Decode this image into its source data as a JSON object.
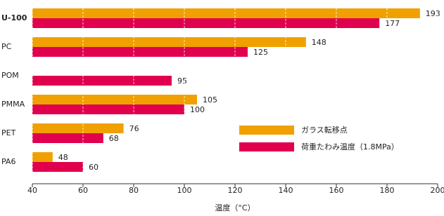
{
  "chart_data": {
    "type": "bar",
    "orientation": "horizontal",
    "x_label": "温度（°C）",
    "categories": [
      "U-100",
      "PC",
      "POM",
      "PMMA",
      "PET",
      "PA6"
    ],
    "series": [
      {
        "name": "ガラス転移点",
        "color": "#f0a000",
        "values": [
          193,
          148,
          null,
          105,
          76,
          48
        ]
      },
      {
        "name": "荷重たわみ温度（1.8MPa）",
        "color": "#e0004e",
        "values": [
          177,
          125,
          95,
          100,
          68,
          60
        ]
      }
    ],
    "xlim": [
      40,
      200
    ],
    "xticks": [
      40,
      60,
      80,
      100,
      120,
      140,
      160,
      180,
      200
    ],
    "grid": true
  }
}
